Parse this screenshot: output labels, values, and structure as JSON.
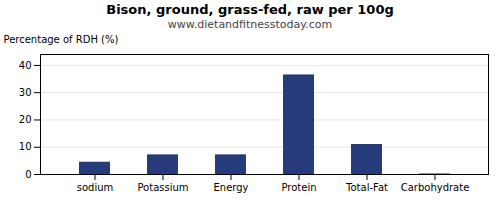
{
  "chart_data": {
    "type": "bar",
    "title": "Bison, ground, grass-fed, raw per 100g",
    "subtitle": "www.dietandfitnesstoday.com",
    "categories": [
      "sodium",
      "Potassium",
      "Energy",
      "Protein",
      "Total-Fat",
      "Carbohydrate"
    ],
    "values": [
      4.5,
      7.2,
      7.2,
      36.5,
      11.0,
      0.2
    ],
    "color": "#253b7a",
    "ylabel": "Percentage of RDH (%)",
    "ylim": [
      0,
      44
    ],
    "yticks": [
      0,
      10,
      20,
      30,
      40
    ],
    "grid": true
  }
}
